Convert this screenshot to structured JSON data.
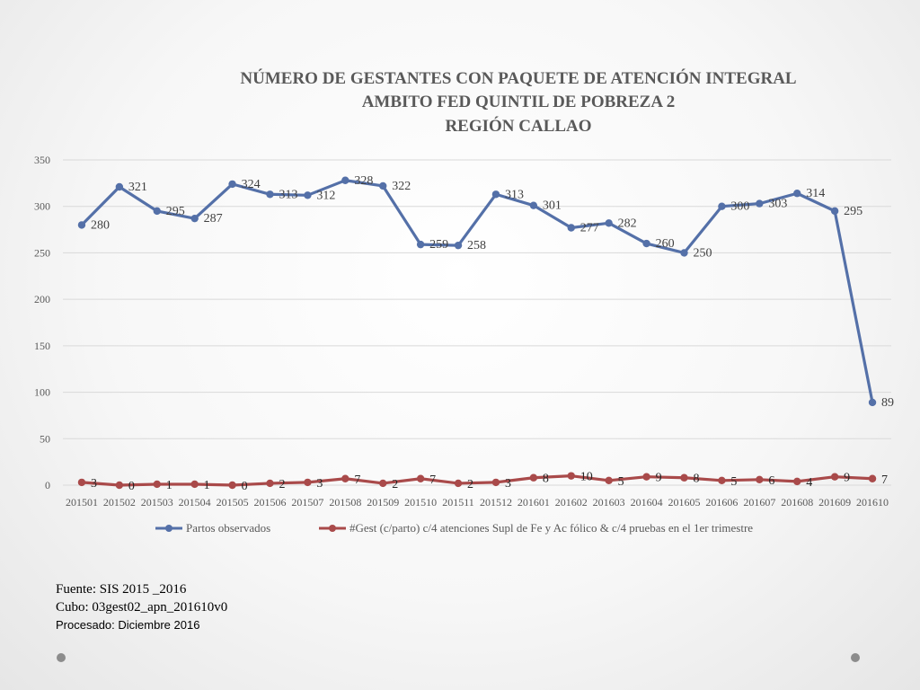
{
  "chart_data": {
    "type": "line",
    "title_lines": [
      "NÚMERO DE GESTANTES CON PAQUETE DE ATENCIÓN INTEGRAL",
      "AMBITO FED QUINTIL DE POBREZA 2",
      "REGIÓN CALLAO"
    ],
    "categories": [
      "201501",
      "201502",
      "201503",
      "201504",
      "201505",
      "201506",
      "201507",
      "201508",
      "201509",
      "201510",
      "201511",
      "201512",
      "201601",
      "201602",
      "201603",
      "201604",
      "201605",
      "201606",
      "201607",
      "201608",
      "201609",
      "201610"
    ],
    "yticks": [
      "0",
      "50",
      "100",
      "150",
      "200",
      "250",
      "300",
      "350"
    ],
    "ylim": [
      0,
      350
    ],
    "grid": true,
    "legend_position": "bottom",
    "series": [
      {
        "name": "Partos observados",
        "color": "#5470a8",
        "values": [
          280,
          321,
          295,
          287,
          324,
          313,
          312,
          328,
          322,
          259,
          258,
          313,
          301,
          277,
          282,
          260,
          250,
          300,
          303,
          314,
          295,
          89
        ],
        "labels": [
          "280",
          "321",
          "295",
          "287",
          "324",
          "313",
          "312",
          "328",
          "322",
          "259",
          "258",
          "313",
          "301",
          "277",
          "282",
          "260",
          "250",
          "300",
          "303",
          "314",
          "295",
          "89"
        ]
      },
      {
        "name": "#Gest (c/parto) c/4 atenciones Supl de Fe y Ac fólico & c/4 pruebas en el 1er trimestre",
        "color": "#a94a4a",
        "values": [
          3,
          0,
          1,
          1,
          0,
          2,
          3,
          7,
          2,
          7,
          2,
          3,
          8,
          10,
          5,
          9,
          8,
          5,
          6,
          4,
          9,
          7
        ],
        "labels": [
          "3",
          "0",
          "1",
          "1",
          "0",
          "2",
          "3",
          "7",
          "2",
          "7",
          "2",
          "3",
          "8",
          "10",
          "5",
          "9",
          "8",
          "5",
          "6",
          "4",
          "9",
          "7"
        ]
      }
    ]
  },
  "footer": {
    "line1": "Fuente: SIS 2015 _2016",
    "line2": "Cubo: 03gest02_apn_201610v0",
    "line3": "Procesado: Diciembre 2016"
  }
}
